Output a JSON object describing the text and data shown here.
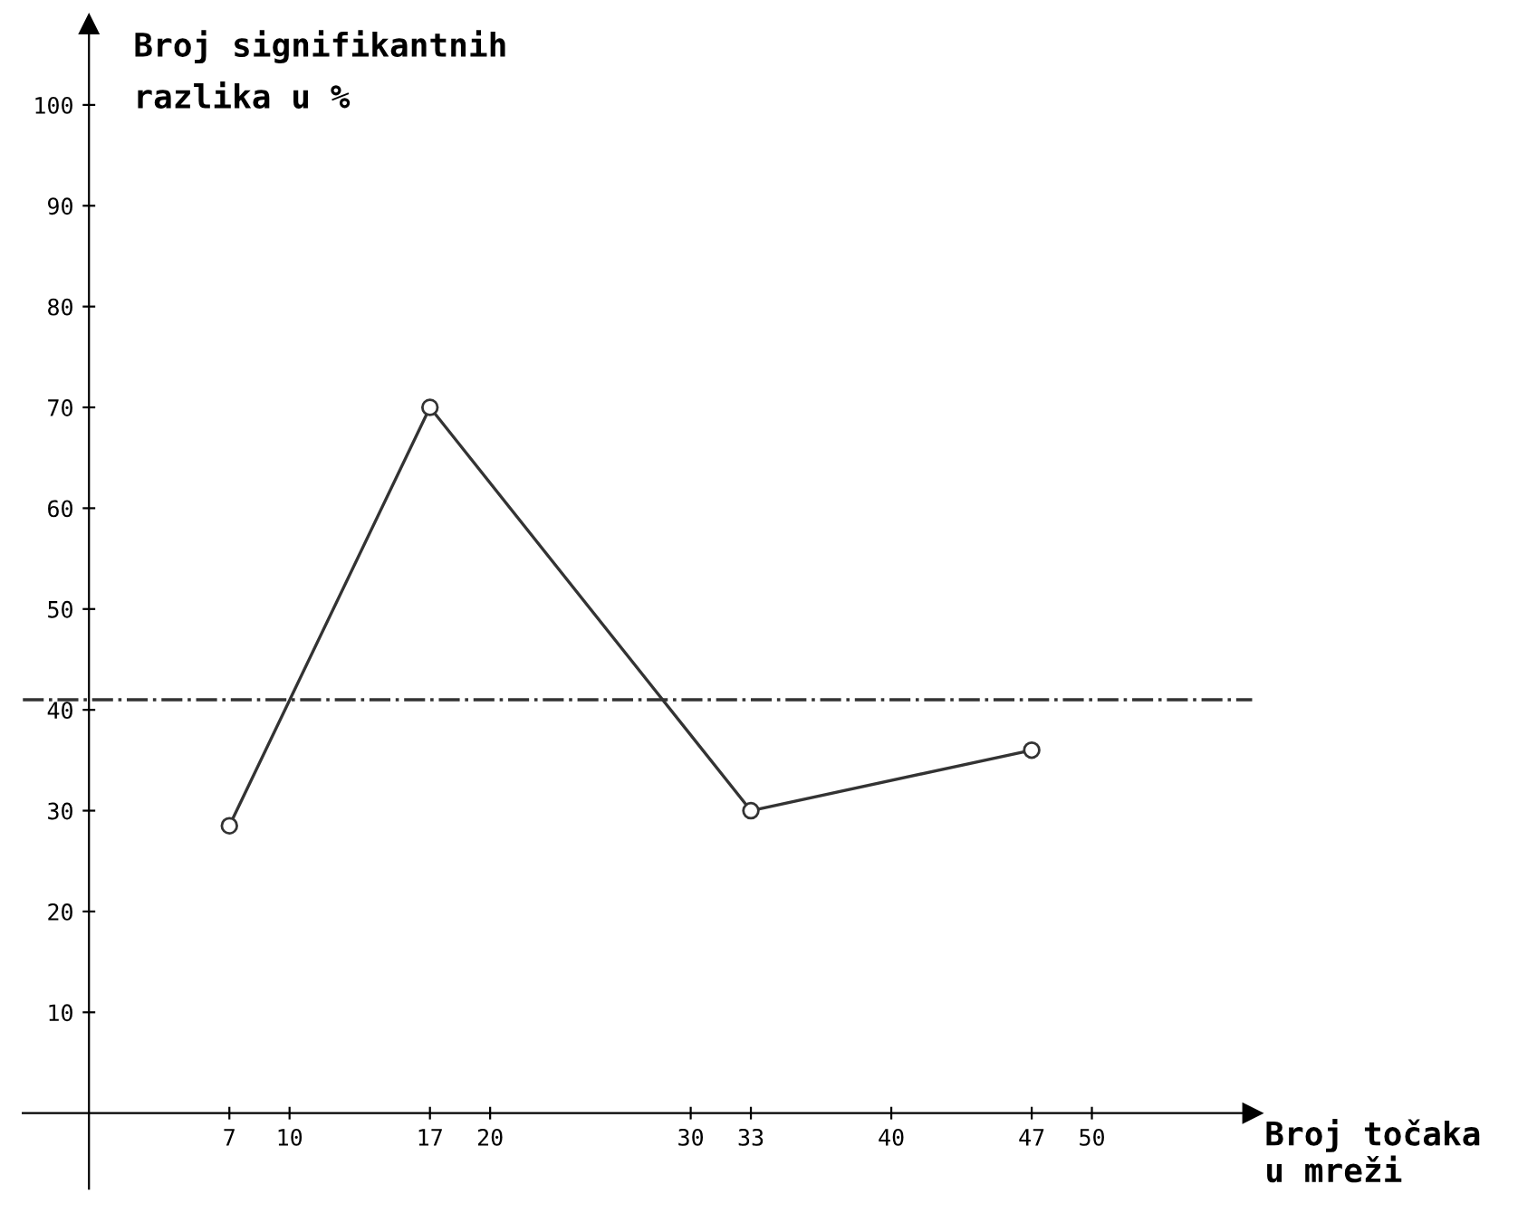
{
  "chart_data": {
    "type": "line",
    "xlabel": "Broj točaka\nu mreži",
    "ylabel": "Broj signifikantnih\nrazlika u %",
    "x": [
      7,
      17,
      33,
      47
    ],
    "series": [
      {
        "color": "#333333",
        "values": [
          28.5,
          70,
          30,
          36
        ]
      }
    ],
    "marker": "circle",
    "line_style": "solid",
    "xlim": [
      -3.3,
      58
    ],
    "ylim": [
      -7.5,
      108
    ],
    "xticks": [
      7,
      10,
      17,
      20,
      30,
      33,
      40,
      47,
      50
    ],
    "yticks": [
      10,
      20,
      30,
      40,
      50,
      60,
      70,
      80,
      90,
      100
    ],
    "ref_lines": [
      {
        "axis": "y",
        "value": 41,
        "color": "#333333",
        "line_style": "dashdot"
      }
    ],
    "grid": false,
    "legend": false
  }
}
